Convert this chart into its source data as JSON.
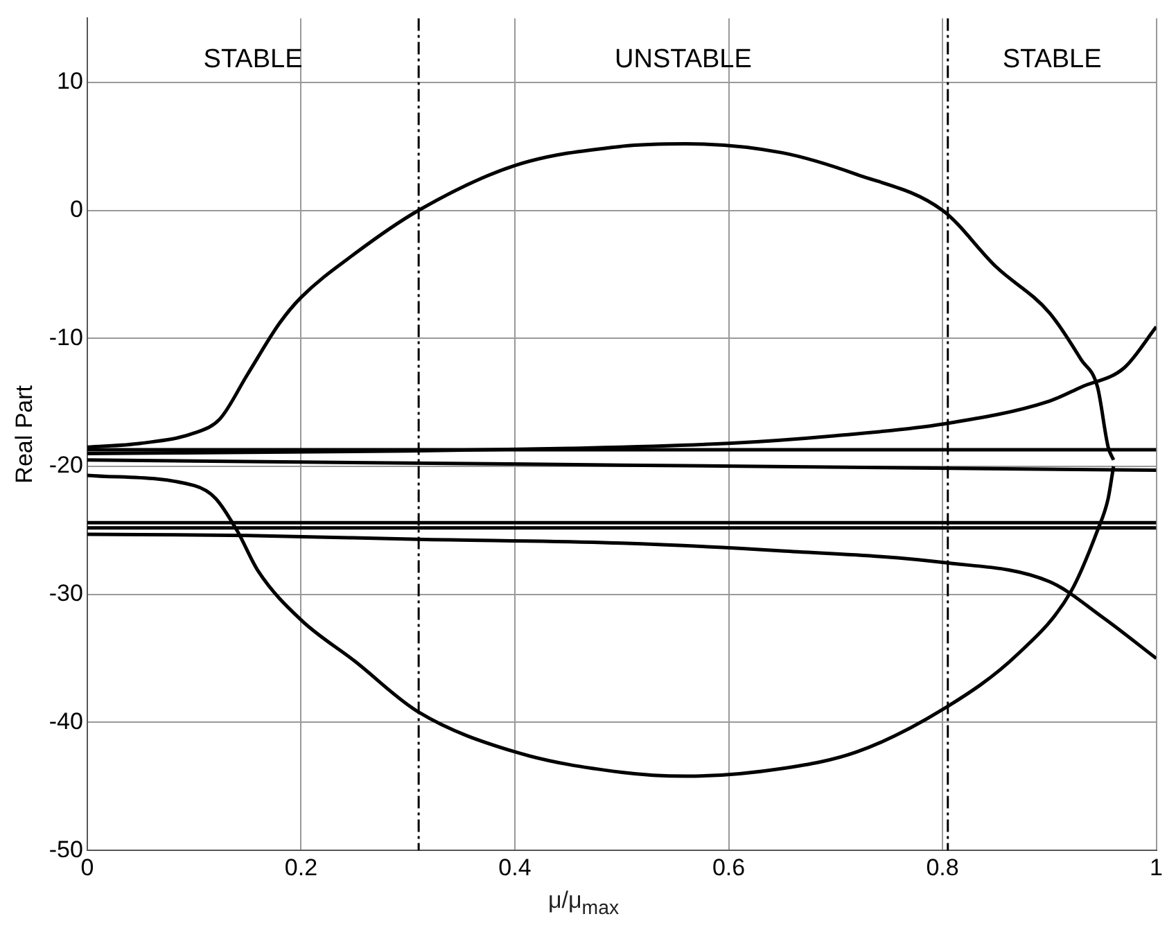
{
  "chart_data": {
    "type": "line",
    "xlabel": "μ/μ$_{max}$",
    "ylabel": "Real Part",
    "xlim": [
      0,
      1
    ],
    "ylim": [
      -50,
      15
    ],
    "xticks": [
      0,
      0.2,
      0.4,
      0.6,
      0.8,
      1
    ],
    "yticks": [
      -50,
      -40,
      -30,
      -20,
      -10,
      0,
      10
    ],
    "grid": true,
    "legend": false,
    "marker": "none",
    "line_style": "solid",
    "series": [
      {
        "color": "#000000",
        "x": [
          0,
          1
        ],
        "values": [
          -18.7,
          -18.7
        ]
      },
      {
        "color": "#000000",
        "x": [
          0,
          0.5,
          1
        ],
        "values": [
          -19.5,
          -19.9,
          -20.3
        ]
      },
      {
        "color": "#000000",
        "x": [
          0,
          1
        ],
        "values": [
          -24.4,
          -24.4
        ]
      },
      {
        "color": "#000000",
        "x": [
          0,
          1
        ],
        "values": [
          -24.8,
          -24.8
        ]
      },
      {
        "color": "#000000",
        "x": [
          0,
          0.15,
          0.31,
          0.5,
          0.65,
          0.8,
          0.9,
          0.95,
          1
        ],
        "values": [
          -25.3,
          -25.4,
          -25.7,
          -26,
          -26.6,
          -27.5,
          -29,
          -31.8,
          -35
        ]
      },
      {
        "color": "#000000",
        "x": [
          0,
          0.3,
          0.45,
          0.6,
          0.7,
          0.8,
          0.9,
          0.93,
          0.97,
          1
        ],
        "values": [
          -19,
          -18.8,
          -18.6,
          -18.2,
          -17.6,
          -16.7,
          -14.9,
          -13.8,
          -12.3,
          -9.1
        ]
      },
      {
        "color": "#000000",
        "x": [
          0,
          0.05,
          0.1,
          0.124,
          0.15,
          0.18,
          0.2,
          0.25,
          0.31,
          0.4,
          0.5,
          0.56,
          0.65,
          0.72,
          0.8,
          0.85,
          0.9,
          0.93,
          0.945,
          0.955,
          0.96
        ],
        "values": [
          -18.5,
          -18.2,
          -17.4,
          -16.3,
          -12.8,
          -8.8,
          -6.8,
          -3.4,
          0,
          3.5,
          5,
          5.2,
          4.5,
          2.8,
          0,
          -4.4,
          -8,
          -11.7,
          -13.8,
          -18.5,
          -19.5
        ]
      },
      {
        "color": "#000000",
        "x": [
          0,
          0.1,
          0.12,
          0.14,
          0.16,
          0.2,
          0.25,
          0.31,
          0.4,
          0.5,
          0.56,
          0.65,
          0.72,
          0.8,
          0.87,
          0.92,
          0.945,
          0.955,
          0.96
        ],
        "values": [
          -20.7,
          -21.5,
          -22.5,
          -25,
          -28.2,
          -32,
          -35.2,
          -39.2,
          -42.3,
          -43.9,
          -44.2,
          -43.6,
          -42.3,
          -39,
          -34.7,
          -29.8,
          -25,
          -22.5,
          -20
        ]
      }
    ],
    "ref_lines": [
      {
        "axis": "x",
        "value": 0.31,
        "color": "#000000",
        "line_style": "dashed"
      },
      {
        "axis": "x",
        "value": 0.805,
        "color": "#000000",
        "line_style": "dashed"
      }
    ],
    "annotations": [
      "STABLE",
      "UNSTABLE",
      "STABLE"
    ]
  }
}
